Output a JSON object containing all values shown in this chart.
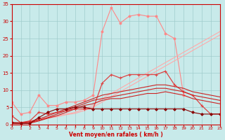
{
  "x": [
    0,
    1,
    2,
    3,
    4,
    5,
    6,
    7,
    8,
    9,
    10,
    11,
    12,
    13,
    14,
    15,
    16,
    17,
    18,
    19,
    20,
    21,
    22,
    23
  ],
  "series": [
    {
      "color": "#ff8888",
      "marker": "o",
      "markersize": 2.0,
      "linewidth": 0.8,
      "y": [
        6.5,
        3.0,
        3.5,
        8.5,
        5.5,
        5.5,
        6.5,
        6.5,
        7.0,
        8.5,
        27.0,
        34.0,
        29.5,
        31.5,
        32.0,
        31.5,
        31.5,
        26.5,
        25.0,
        8.5,
        null,
        null,
        null,
        null
      ]
    },
    {
      "color": "#ffaaaa",
      "marker": null,
      "markersize": 0,
      "linewidth": 0.8,
      "y": [
        0.5,
        0.5,
        1.0,
        1.5,
        2.0,
        2.5,
        3.0,
        3.5,
        4.5,
        5.5,
        7.5,
        9.0,
        10.5,
        12.0,
        13.5,
        15.0,
        16.5,
        18.0,
        19.5,
        21.0,
        22.5,
        24.0,
        25.5,
        27.0
      ]
    },
    {
      "color": "#ffaaaa",
      "marker": null,
      "markersize": 0,
      "linewidth": 0.8,
      "y": [
        0.3,
        0.3,
        0.8,
        1.2,
        1.8,
        2.2,
        2.8,
        3.2,
        4.0,
        5.0,
        6.5,
        8.0,
        9.5,
        11.0,
        12.5,
        14.0,
        15.5,
        17.0,
        18.5,
        20.0,
        21.5,
        23.0,
        24.5,
        26.0
      ]
    },
    {
      "color": "#dd4444",
      "marker": "+",
      "markersize": 3.0,
      "linewidth": 0.9,
      "y": [
        2.5,
        0.5,
        1.0,
        3.5,
        3.0,
        3.5,
        4.0,
        4.5,
        4.5,
        4.5,
        12.0,
        14.5,
        13.5,
        14.5,
        14.5,
        14.5,
        14.5,
        15.5,
        11.5,
        9.5,
        8.5,
        5.5,
        3.0,
        3.0
      ]
    },
    {
      "color": "#cc2222",
      "marker": null,
      "markersize": 0,
      "linewidth": 0.8,
      "y": [
        0.5,
        0.5,
        0.8,
        1.5,
        2.5,
        3.5,
        4.5,
        5.5,
        6.5,
        7.5,
        8.5,
        9.0,
        9.5,
        10.0,
        10.5,
        11.0,
        11.5,
        11.5,
        11.0,
        10.5,
        9.5,
        9.0,
        8.5,
        8.0
      ]
    },
    {
      "color": "#cc2222",
      "marker": null,
      "markersize": 0,
      "linewidth": 0.8,
      "y": [
        0.3,
        0.3,
        0.5,
        1.2,
        2.0,
        3.0,
        4.0,
        5.0,
        6.0,
        7.0,
        7.5,
        8.0,
        8.5,
        9.0,
        9.5,
        10.0,
        10.5,
        10.5,
        10.0,
        9.5,
        8.5,
        8.0,
        7.5,
        7.0
      ]
    },
    {
      "color": "#cc2222",
      "marker": null,
      "markersize": 0,
      "linewidth": 0.8,
      "y": [
        0.2,
        0.2,
        0.3,
        1.0,
        1.8,
        2.5,
        3.5,
        4.5,
        5.5,
        6.0,
        7.0,
        7.5,
        7.5,
        8.0,
        8.5,
        9.0,
        9.0,
        9.5,
        9.0,
        8.5,
        7.5,
        7.0,
        6.5,
        6.0
      ]
    },
    {
      "color": "#880000",
      "marker": "D",
      "markersize": 1.8,
      "linewidth": 0.8,
      "y": [
        0.5,
        0.3,
        0.3,
        2.0,
        3.5,
        4.5,
        4.5,
        5.0,
        5.0,
        4.5,
        4.5,
        4.5,
        4.5,
        4.5,
        4.5,
        4.5,
        4.5,
        4.5,
        4.5,
        4.5,
        3.5,
        3.0,
        3.0,
        3.0
      ]
    }
  ],
  "xlabel": "Vent moyen/en rafales ( km/h )",
  "xlim": [
    0,
    23
  ],
  "ylim": [
    0,
    35
  ],
  "yticks": [
    0,
    5,
    10,
    15,
    20,
    25,
    30,
    35
  ],
  "xticks": [
    0,
    1,
    2,
    3,
    4,
    5,
    6,
    7,
    8,
    9,
    10,
    11,
    12,
    13,
    14,
    15,
    16,
    17,
    18,
    19,
    20,
    21,
    22,
    23
  ],
  "bg_color": "#c8eaea",
  "grid_color": "#a0cccc",
  "tick_color": "#cc0000",
  "label_color": "#cc0000",
  "axis_color": "#cc0000"
}
